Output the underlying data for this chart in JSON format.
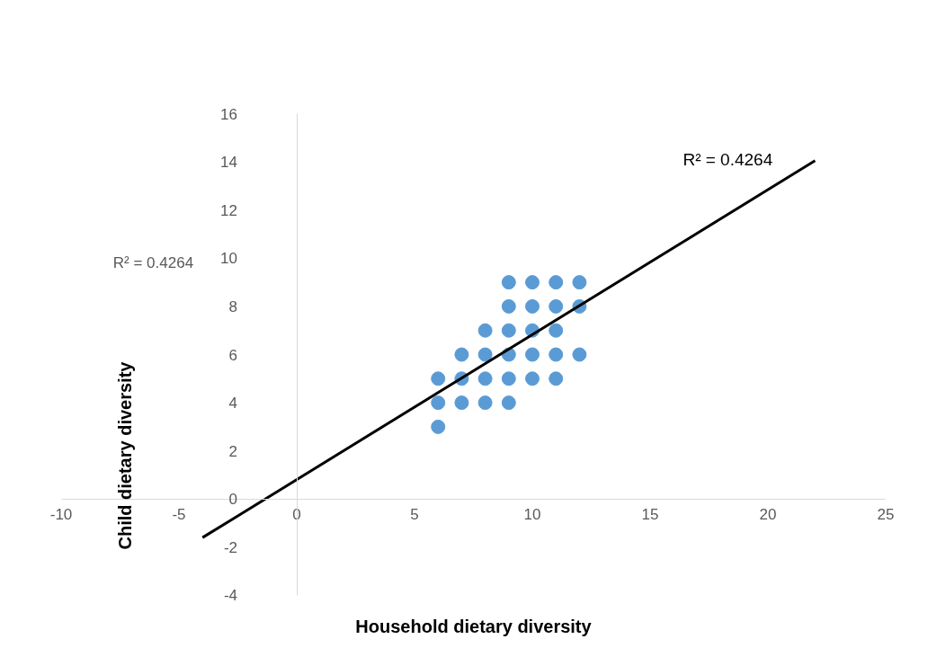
{
  "chart_data": {
    "type": "scatter",
    "xlabel": "Household dietary diversity",
    "ylabel": "Child dietary diversity",
    "xlim": [
      -10,
      25
    ],
    "ylim": [
      -4,
      16
    ],
    "xticks": [
      -10,
      -5,
      0,
      5,
      10,
      15,
      20,
      25
    ],
    "yticks": [
      -4,
      -2,
      0,
      2,
      4,
      6,
      8,
      10,
      12,
      14,
      16
    ],
    "series": [
      {
        "color": "#5b9bd5",
        "marker": "circle",
        "x": [
          6,
          6,
          6,
          7,
          7,
          7,
          8,
          8,
          8,
          8,
          9,
          9,
          9,
          9,
          9,
          9,
          10,
          10,
          10,
          10,
          10,
          11,
          11,
          11,
          11,
          11,
          12,
          12,
          12
        ],
        "values": [
          3,
          4,
          5,
          4,
          5,
          6,
          4,
          5,
          6,
          7,
          4,
          5,
          6,
          7,
          8,
          9,
          5,
          6,
          7,
          8,
          9,
          5,
          6,
          7,
          8,
          9,
          6,
          8,
          9
        ]
      },
      {
        "type": "line",
        "color": "#000000",
        "x": [
          -4,
          22
        ],
        "values": [
          -1.6,
          14.05
        ]
      }
    ],
    "annotations": [
      "R² = 0.4264",
      "R² = 0.4264"
    ]
  }
}
